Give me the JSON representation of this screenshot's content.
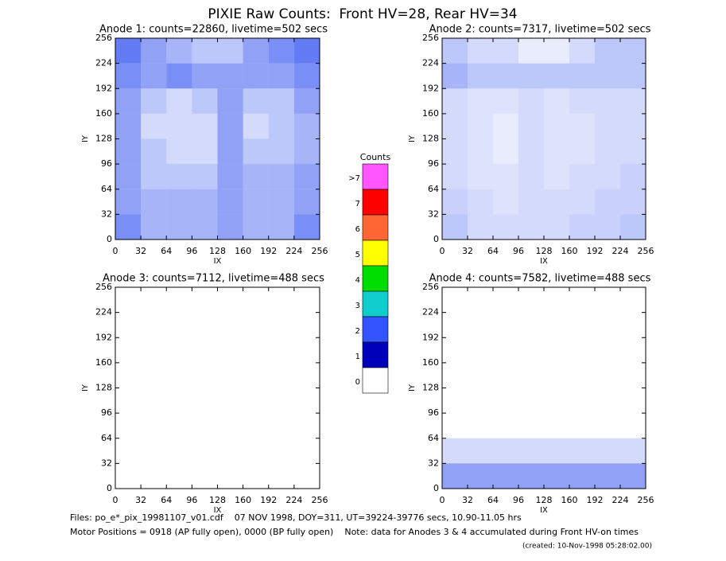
{
  "title": "PIXIE Raw Counts:  Front HV=28, Rear HV=34",
  "chart_data": [
    {
      "type": "heatmap",
      "title": "Anode 1: counts=22860, livetime=502 secs",
      "xlabel": "IX",
      "ylabel": "IY",
      "xlim": [
        0,
        256
      ],
      "ylim": [
        0,
        256
      ],
      "xticks": [
        0,
        32,
        64,
        96,
        128,
        160,
        192,
        224,
        256
      ],
      "yticks": [
        0,
        32,
        64,
        96,
        128,
        160,
        192,
        224,
        256
      ],
      "density": [
        [
          0.7,
          0.5,
          0.4,
          0.3,
          0.3,
          0.5,
          0.6,
          0.7
        ],
        [
          0.6,
          0.5,
          0.6,
          0.5,
          0.5,
          0.5,
          0.5,
          0.6
        ],
        [
          0.5,
          0.3,
          0.2,
          0.3,
          0.5,
          0.3,
          0.3,
          0.5
        ],
        [
          0.5,
          0.2,
          0.2,
          0.2,
          0.5,
          0.2,
          0.3,
          0.4
        ],
        [
          0.5,
          0.3,
          0.2,
          0.2,
          0.5,
          0.3,
          0.3,
          0.4
        ],
        [
          0.5,
          0.3,
          0.3,
          0.3,
          0.5,
          0.4,
          0.4,
          0.5
        ],
        [
          0.5,
          0.4,
          0.4,
          0.4,
          0.5,
          0.4,
          0.4,
          0.5
        ],
        [
          0.6,
          0.4,
          0.4,
          0.4,
          0.5,
          0.4,
          0.4,
          0.6
        ]
      ]
    },
    {
      "type": "heatmap",
      "title": "Anode 2: counts=7317, livetime=502 secs",
      "xlabel": "IX",
      "ylabel": "IY",
      "xlim": [
        0,
        256
      ],
      "ylim": [
        0,
        256
      ],
      "xticks": [
        0,
        32,
        64,
        96,
        128,
        160,
        192,
        224,
        256
      ],
      "yticks": [
        0,
        32,
        64,
        96,
        128,
        160,
        192,
        224,
        256
      ],
      "density": [
        [
          0.3,
          0.2,
          0.2,
          0.1,
          0.1,
          0.2,
          0.3,
          0.3
        ],
        [
          0.4,
          0.3,
          0.3,
          0.3,
          0.3,
          0.3,
          0.3,
          0.3
        ],
        [
          0.2,
          0.15,
          0.15,
          0.2,
          0.15,
          0.2,
          0.2,
          0.2
        ],
        [
          0.2,
          0.15,
          0.1,
          0.2,
          0.15,
          0.15,
          0.2,
          0.2
        ],
        [
          0.2,
          0.15,
          0.1,
          0.2,
          0.15,
          0.15,
          0.2,
          0.2
        ],
        [
          0.2,
          0.15,
          0.15,
          0.2,
          0.15,
          0.2,
          0.2,
          0.25
        ],
        [
          0.25,
          0.2,
          0.15,
          0.2,
          0.2,
          0.2,
          0.25,
          0.25
        ],
        [
          0.3,
          0.2,
          0.2,
          0.2,
          0.2,
          0.25,
          0.25,
          0.3
        ]
      ]
    },
    {
      "type": "heatmap",
      "title": "Anode 3: counts=7112, livetime=488 secs",
      "xlabel": "IX",
      "ylabel": "IY",
      "xlim": [
        0,
        256
      ],
      "ylim": [
        0,
        256
      ],
      "xticks": [
        0,
        32,
        64,
        96,
        128,
        160,
        192,
        224,
        256
      ],
      "yticks": [
        0,
        32,
        64,
        96,
        128,
        160,
        192,
        224,
        256
      ],
      "density": [
        [
          0,
          0,
          0,
          0,
          0,
          0,
          0,
          0
        ],
        [
          0,
          0,
          0,
          0,
          0,
          0,
          0,
          0
        ],
        [
          0,
          0,
          0,
          0,
          0,
          0,
          0,
          0
        ],
        [
          0,
          0,
          0,
          0,
          0,
          0,
          0,
          0
        ],
        [
          0,
          0,
          0,
          0,
          0,
          0,
          0,
          0
        ],
        [
          0,
          0,
          0,
          0,
          0,
          0,
          0,
          0
        ],
        [
          0,
          0,
          0,
          0,
          0,
          0,
          0,
          0
        ],
        [
          0,
          0,
          0,
          0,
          0,
          0,
          0,
          0
        ]
      ]
    },
    {
      "type": "heatmap",
      "title": "Anode 4: counts=7582, livetime=488 secs",
      "xlabel": "IX",
      "ylabel": "IY",
      "xlim": [
        0,
        256
      ],
      "ylim": [
        0,
        256
      ],
      "xticks": [
        0,
        32,
        64,
        96,
        128,
        160,
        192,
        224,
        256
      ],
      "yticks": [
        0,
        32,
        64,
        96,
        128,
        160,
        192,
        224,
        256
      ],
      "density": [
        [
          0,
          0,
          0,
          0,
          0,
          0,
          0,
          0
        ],
        [
          0,
          0,
          0,
          0,
          0,
          0,
          0,
          0
        ],
        [
          0,
          0,
          0,
          0,
          0,
          0,
          0,
          0
        ],
        [
          0,
          0,
          0,
          0,
          0,
          0,
          0,
          0
        ],
        [
          0,
          0,
          0,
          0,
          0,
          0,
          0,
          0
        ],
        [
          0,
          0,
          0,
          0,
          0,
          0,
          0,
          0
        ],
        [
          0.2,
          0.2,
          0.2,
          0.2,
          0.2,
          0.2,
          0.2,
          0.2
        ],
        [
          0.5,
          0.5,
          0.5,
          0.5,
          0.5,
          0.5,
          0.5,
          0.5
        ]
      ]
    }
  ],
  "colorbar": {
    "title": "Counts",
    "labels": [
      ">7",
      "7",
      "6",
      "5",
      "4",
      "3",
      "2",
      "1",
      "0"
    ],
    "colors": [
      "#ff55ff",
      "#ff0000",
      "#ff6633",
      "#ffff00",
      "#00dd00",
      "#11cccc",
      "#3355ff",
      "#0000bb",
      "#ffffff"
    ]
  },
  "footer": [
    "Files: po_e*_pix_19981107_v01.cdf    07 NOV 1998, DOY=311, UT=39224-39776 secs, 10.90-11.05 hrs",
    "Motor Positions = 0918 (AP fully open), 0000 (BP fully open)    Note: data for Anodes 3 & 4 accumulated during Front HV-on times",
    "(created: 10-Nov-1998 05:28:02.00)"
  ]
}
